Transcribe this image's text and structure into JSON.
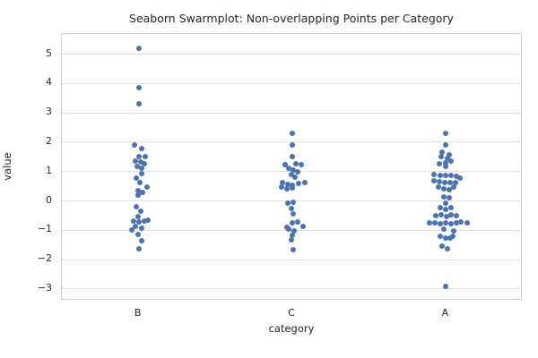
{
  "title": "Seaborn Swarmplot: Non-overlapping Points per Category",
  "xlabel": "category",
  "ylabel": "value",
  "colors": {
    "point": "#4C72B0",
    "grid": "#e0e0e0",
    "spine": "#cfcfcf",
    "text": "#262626",
    "background": "#ffffff"
  },
  "chart_data": {
    "type": "scatter",
    "variant": "swarmplot",
    "grid": "horizontal-on",
    "categories": [
      "B",
      "C",
      "A"
    ],
    "yticks": [
      5,
      4,
      3,
      2,
      1,
      0,
      -1,
      -2,
      -3
    ],
    "ylim": [
      -3.4,
      5.69
    ],
    "series": [
      {
        "name": "B",
        "points": [
          [
            0,
            5.2
          ],
          [
            0,
            3.85
          ],
          [
            0,
            3.3
          ],
          [
            -5,
            1.9
          ],
          [
            3,
            1.78
          ],
          [
            0,
            1.52
          ],
          [
            7,
            1.5
          ],
          [
            -4,
            1.35
          ],
          [
            2,
            1.32
          ],
          [
            6,
            1.27
          ],
          [
            -2,
            1.17
          ],
          [
            3,
            1.1
          ],
          [
            3,
            0.92
          ],
          [
            -3,
            0.77
          ],
          [
            1,
            0.63
          ],
          [
            9,
            0.46
          ],
          [
            -1,
            0.36
          ],
          [
            4,
            0.29
          ],
          [
            -1,
            0.2
          ],
          [
            -3,
            -0.2
          ],
          [
            2,
            -0.34
          ],
          [
            -1,
            -0.53
          ],
          [
            -6,
            -0.68
          ],
          [
            0,
            -0.72
          ],
          [
            6,
            -0.69
          ],
          [
            10,
            -0.66
          ],
          [
            -4,
            -0.88
          ],
          [
            3,
            -0.92
          ],
          [
            -8,
            -1.0
          ],
          [
            -1,
            -1.14
          ],
          [
            3,
            -1.35
          ],
          [
            0,
            -1.63
          ]
        ]
      },
      {
        "name": "C",
        "points": [
          [
            0,
            2.3
          ],
          [
            0,
            1.9
          ],
          [
            0,
            1.5
          ],
          [
            -8,
            1.24
          ],
          [
            4,
            1.27
          ],
          [
            10,
            1.24
          ],
          [
            -4,
            1.12
          ],
          [
            1,
            1.04
          ],
          [
            6,
            1.0
          ],
          [
            -1,
            0.9
          ],
          [
            3,
            0.82
          ],
          [
            -11,
            0.62
          ],
          [
            -5,
            0.56
          ],
          [
            0,
            0.53
          ],
          [
            7,
            0.59
          ],
          [
            14,
            0.63
          ],
          [
            -12,
            0.47
          ],
          [
            -6,
            0.41
          ],
          [
            0,
            0.44
          ],
          [
            -5,
            -0.07
          ],
          [
            1,
            -0.05
          ],
          [
            -1,
            -0.25
          ],
          [
            1,
            -0.43
          ],
          [
            0,
            -0.74
          ],
          [
            6,
            -0.71
          ],
          [
            -6,
            -0.9
          ],
          [
            12,
            -0.86
          ],
          [
            -4,
            -0.97
          ],
          [
            2,
            -1.02
          ],
          [
            0,
            -1.16
          ],
          [
            -1,
            -1.32
          ],
          [
            1,
            -1.67
          ]
        ]
      },
      {
        "name": "A",
        "points": [
          [
            0,
            2.3
          ],
          [
            0,
            1.9
          ],
          [
            -4,
            1.65
          ],
          [
            4,
            1.58
          ],
          [
            -5,
            1.5
          ],
          [
            2,
            1.45
          ],
          [
            -7,
            1.27
          ],
          [
            0,
            1.3
          ],
          [
            6,
            1.35
          ],
          [
            0,
            1.17
          ],
          [
            -13,
            0.9
          ],
          [
            -6,
            0.87
          ],
          [
            0,
            0.88
          ],
          [
            6,
            0.86
          ],
          [
            12,
            0.84
          ],
          [
            16,
            0.77
          ],
          [
            -13,
            0.69
          ],
          [
            -7,
            0.65
          ],
          [
            -1,
            0.62
          ],
          [
            5,
            0.62
          ],
          [
            11,
            0.62
          ],
          [
            -8,
            0.46
          ],
          [
            -2,
            0.41
          ],
          [
            4,
            0.39
          ],
          [
            9,
            0.46
          ],
          [
            -2,
            0.15
          ],
          [
            4,
            0.12
          ],
          [
            0,
            -0.09
          ],
          [
            -6,
            -0.22
          ],
          [
            0,
            -0.29
          ],
          [
            6,
            -0.24
          ],
          [
            -11,
            -0.49
          ],
          [
            -5,
            -0.46
          ],
          [
            1,
            -0.52
          ],
          [
            6,
            -0.46
          ],
          [
            12,
            -0.49
          ],
          [
            -18,
            -0.74
          ],
          [
            -12,
            -0.76
          ],
          [
            -6,
            -0.78
          ],
          [
            0,
            -0.75
          ],
          [
            6,
            -0.77
          ],
          [
            12,
            -0.74
          ],
          [
            17,
            -0.72
          ],
          [
            24,
            -0.75
          ],
          [
            -2,
            -0.95
          ],
          [
            9,
            -1.03
          ],
          [
            -6,
            -1.21
          ],
          [
            0,
            -1.27
          ],
          [
            5,
            -1.26
          ],
          [
            8,
            -1.19
          ],
          [
            -4,
            -1.53
          ],
          [
            2,
            -1.63
          ],
          [
            0,
            -2.9
          ]
        ]
      }
    ]
  }
}
